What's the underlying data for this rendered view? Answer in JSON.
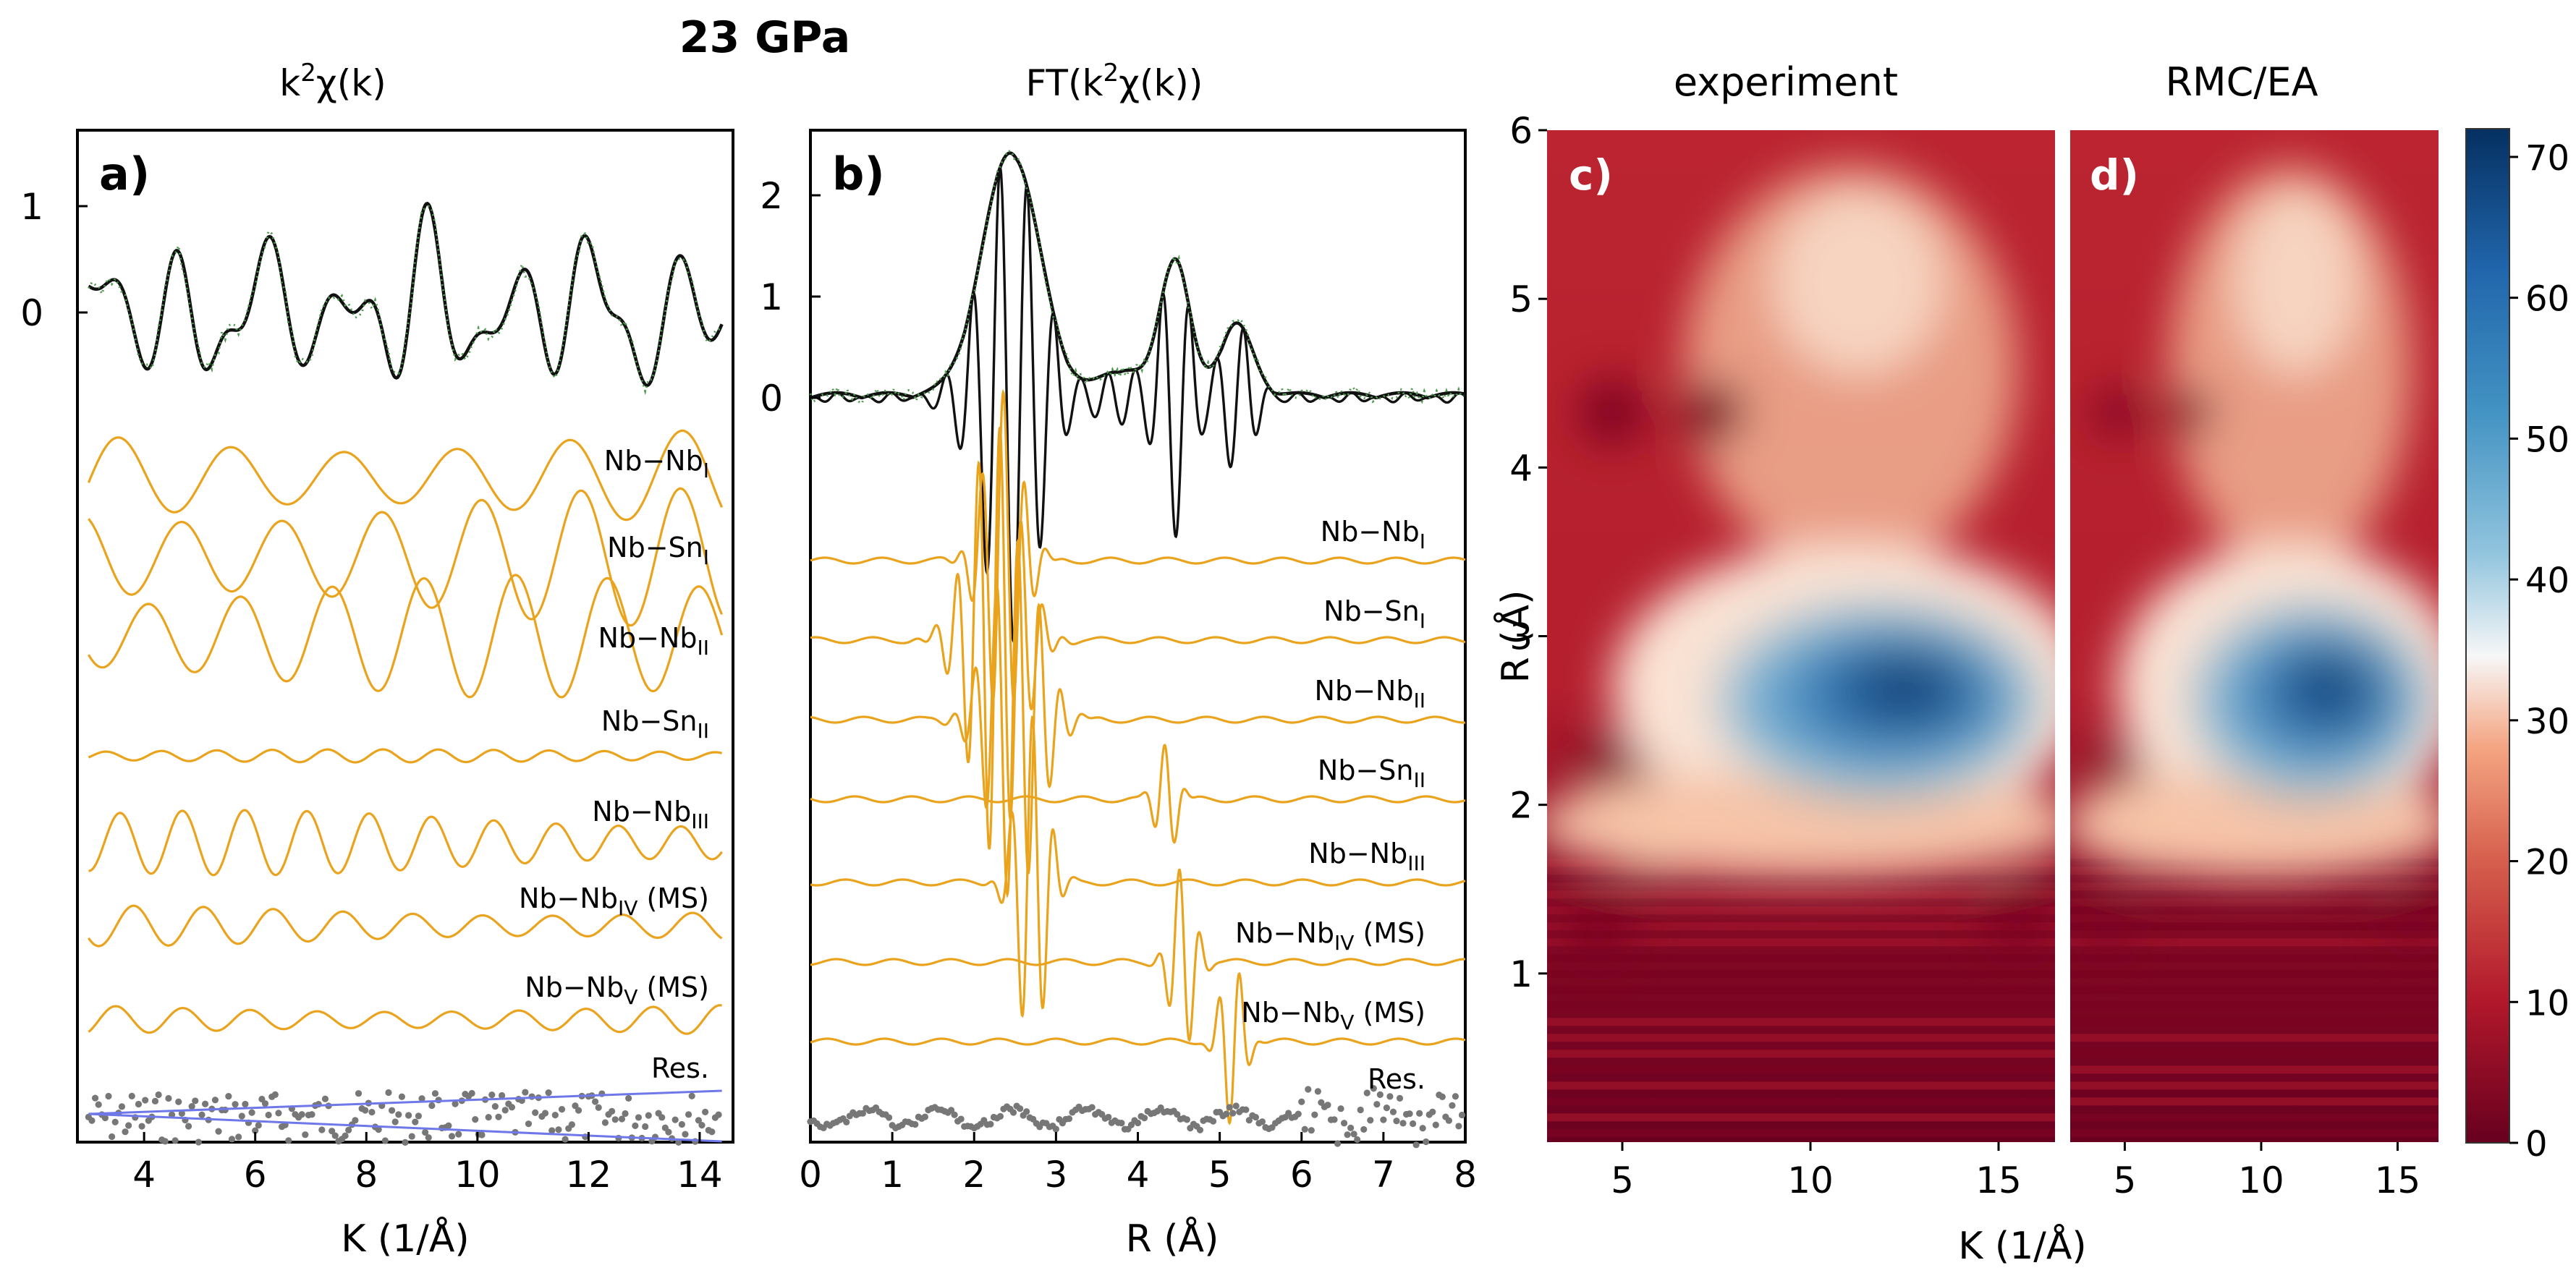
{
  "figure_title": "23 GPa",
  "colorbar": {
    "ticks": [
      "0",
      "10",
      "20",
      "30",
      "40",
      "50",
      "60",
      "70"
    ],
    "min": 0,
    "max": 72,
    "colors": {
      "low": "#67001f",
      "mid": "#f7f7f7",
      "high": "#053061"
    }
  },
  "chart_data": [
    {
      "type": "line",
      "panel_label": "a)",
      "title_base": "k",
      "title_sup": "2",
      "title_rest": "χ(k)",
      "xlabel": "K (1/Å)",
      "xlim": [
        2.8,
        14.6
      ],
      "xticks": [
        "4",
        "6",
        "8",
        "10",
        "12",
        "14"
      ],
      "yticks": [
        "1",
        "0"
      ],
      "series_labels": [
        {
          "main": "Nb−Nb",
          "sub": "I",
          "suffix": ""
        },
        {
          "main": "Nb−Sn",
          "sub": "I",
          "suffix": ""
        },
        {
          "main": "Nb−Nb",
          "sub": "II",
          "suffix": ""
        },
        {
          "main": "Nb−Sn",
          "sub": "II",
          "suffix": ""
        },
        {
          "main": "Nb−Nb",
          "sub": "III",
          "suffix": ""
        },
        {
          "main": "Nb−Nb",
          "sub": "IV",
          "suffix": " (MS)"
        },
        {
          "main": "Nb−Nb",
          "sub": "V",
          "suffix": " (MS)"
        }
      ],
      "residual_label": "Res."
    },
    {
      "type": "line",
      "panel_label": "b)",
      "title_base": "FT(k",
      "title_sup": "2",
      "title_rest": "χ(k))",
      "xlabel": "R (Å)",
      "xlim": [
        0,
        8
      ],
      "xticks": [
        "0",
        "1",
        "2",
        "3",
        "4",
        "5",
        "6",
        "7",
        "8"
      ],
      "yticks": [
        "2",
        "1",
        "0"
      ],
      "series_labels": [
        {
          "main": "Nb−Nb",
          "sub": "I",
          "suffix": ""
        },
        {
          "main": "Nb−Sn",
          "sub": "I",
          "suffix": ""
        },
        {
          "main": "Nb−Nb",
          "sub": "II",
          "suffix": ""
        },
        {
          "main": "Nb−Sn",
          "sub": "II",
          "suffix": ""
        },
        {
          "main": "Nb−Nb",
          "sub": "III",
          "suffix": ""
        },
        {
          "main": "Nb−Nb",
          "sub": "IV",
          "suffix": " (MS)"
        },
        {
          "main": "Nb−Nb",
          "sub": "V",
          "suffix": " (MS)"
        }
      ],
      "residual_label": "Res."
    },
    {
      "type": "heatmap",
      "panel_label": "c)",
      "title": "experiment",
      "xlim": [
        3,
        16.5
      ],
      "ylim": [
        0,
        6
      ],
      "xticks": [
        "5",
        "10",
        "15"
      ],
      "yticks": [
        "6",
        "5",
        "4",
        "3",
        "2",
        "1"
      ],
      "ylabel": "R (Å)"
    },
    {
      "type": "heatmap",
      "panel_label": "d)",
      "title": "RMC/EA",
      "xlim": [
        3,
        16.5
      ],
      "ylim": [
        0,
        6
      ],
      "xticks": [
        "5",
        "10",
        "15"
      ]
    }
  ],
  "shared_xlabel": "K (1/Å)"
}
